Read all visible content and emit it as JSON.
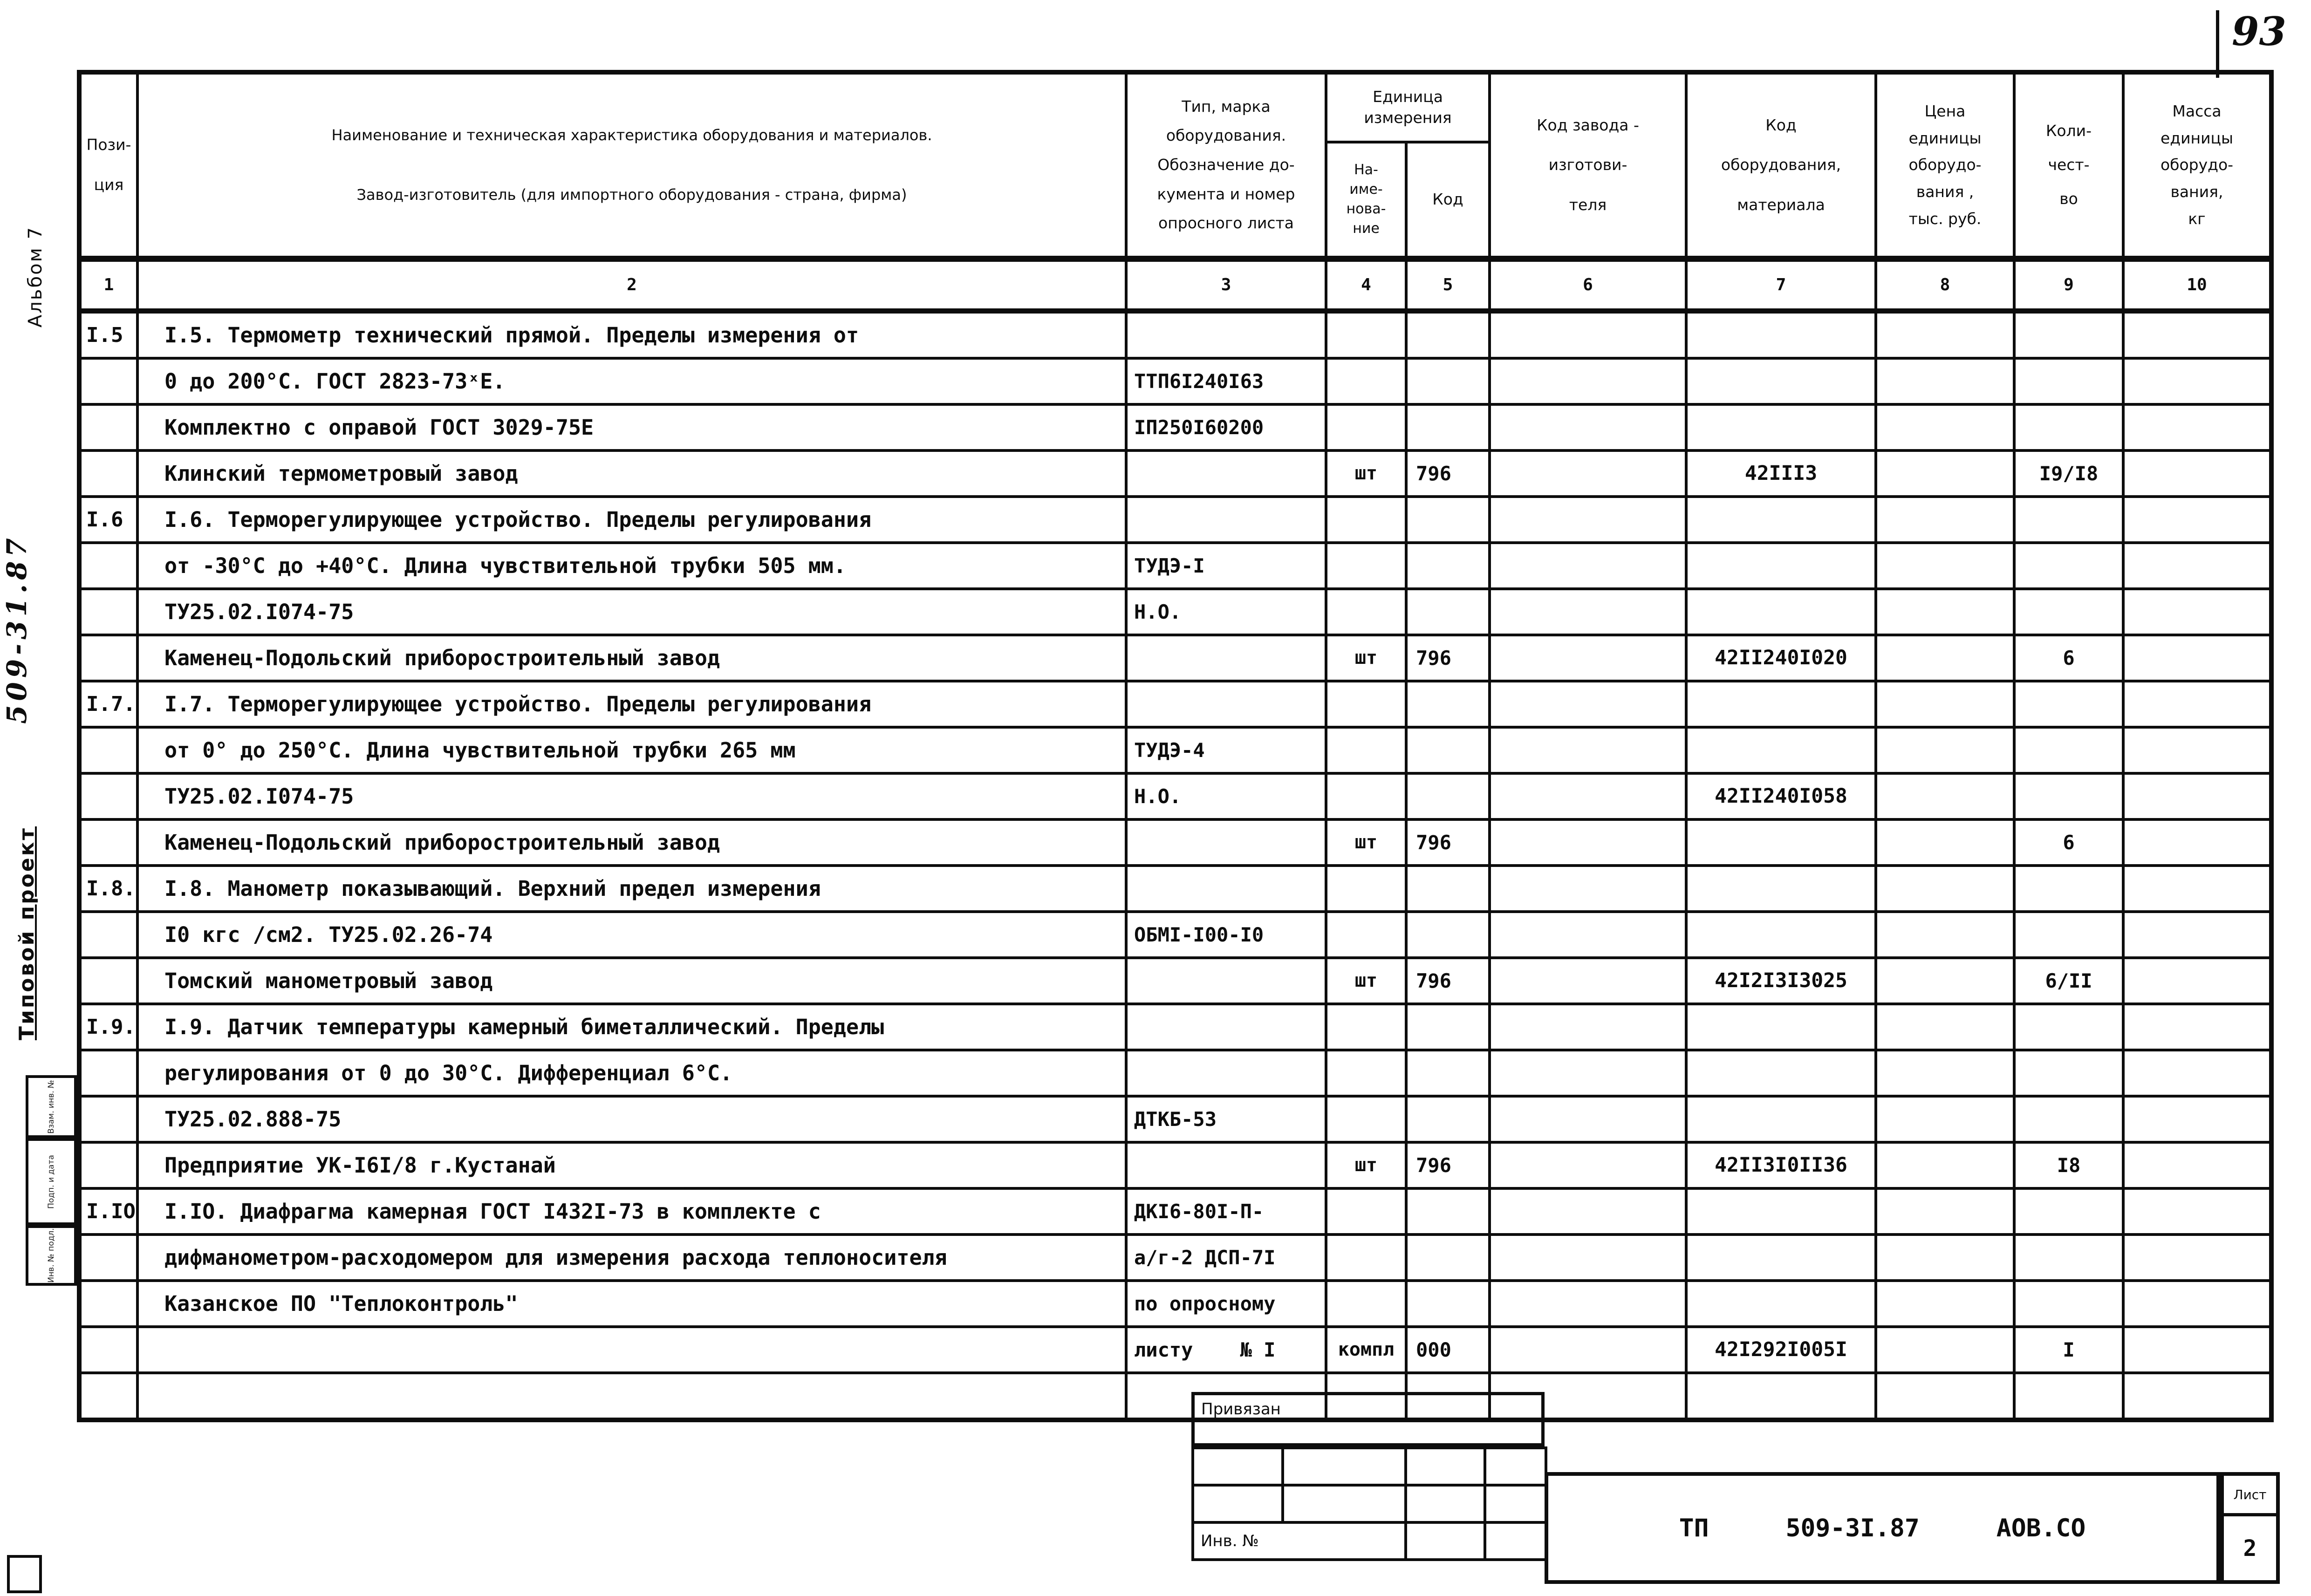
{
  "page": {
    "number_note": "93"
  },
  "margin": {
    "album": "Альбом 7",
    "project_code": "509-31.87",
    "project_type": "Типовой проект",
    "stamp_labels": [
      "Взам. инв. №",
      "Подп. и дата",
      "Инв. № подл."
    ]
  },
  "table": {
    "header": {
      "c1": "Пози-\nция",
      "c2": "Наименование и техническая характеристика  оборудования и материалов.\n\nЗавод-изготовитель  (для импортного оборудования -  страна, фирма)",
      "c3": "Тип,    марка\nоборудования.\nОбозначение  до-\nкумента и  номер\nопросного листа",
      "unit": "Единица\nизмерения",
      "c4": "На-\nиме-\nнова-\nние",
      "c5": "Код",
      "c6": "Код  завода -\nизготови-\nтеля",
      "c7": "Код\nоборудования,\nматериала",
      "c8": "Цена\nединицы\nоборудо-\nвания ,\nтыс. руб.",
      "c9": "Коли-\nчест-\nво",
      "c10": "Масса\nединицы\nоборудо-\nвания,\nкг",
      "numbers": [
        "1",
        "2",
        "3",
        "4",
        "5",
        "6",
        "7",
        "8",
        "9",
        "10"
      ]
    },
    "rows": [
      [
        "I.5",
        "I.5. Термометр технический прямой. Пределы измерения от",
        "",
        "",
        "",
        "",
        "",
        "",
        "",
        ""
      ],
      [
        "",
        "0 до 200°С. ГОСТ 2823-73ˣЕ.",
        "ТТП6I240I63",
        "",
        "",
        "",
        "",
        "",
        "",
        ""
      ],
      [
        "",
        "Комплектно с оправой ГОСТ 3029-75Е",
        "IП250I60200",
        "",
        "",
        "",
        "",
        "",
        "",
        ""
      ],
      [
        "",
        "Клинский термометровый завод",
        "",
        "шт",
        "796",
        "",
        "42III3",
        "",
        "I9/I8",
        ""
      ],
      [
        "I.6",
        "I.6. Терморегулирующее устройство. Пределы регулирования",
        "",
        "",
        "",
        "",
        "",
        "",
        "",
        ""
      ],
      [
        "",
        "от -30°С до +40°С. Длина чувствительной трубки 505 мм.",
        "ТУДЭ-I",
        "",
        "",
        "",
        "",
        "",
        "",
        ""
      ],
      [
        "",
        "ТУ25.02.I074-75",
        "Н.О.",
        "",
        "",
        "",
        "",
        "",
        "",
        ""
      ],
      [
        "",
        "Каменец-Подольский приборостроительный завод",
        "",
        "шт",
        "796",
        "",
        "42II240I020",
        "",
        "6",
        ""
      ],
      [
        "I.7.",
        "I.7. Терморегулирующее устройство. Пределы регулирования",
        "",
        "",
        "",
        "",
        "",
        "",
        "",
        ""
      ],
      [
        "",
        "от 0° до 250°С. Длина чувствительной трубки 265 мм",
        "ТУДЭ-4",
        "",
        "",
        "",
        "",
        "",
        "",
        ""
      ],
      [
        "",
        "ТУ25.02.I074-75",
        "Н.О.",
        "",
        "",
        "",
        "42II240I058",
        "",
        "",
        ""
      ],
      [
        "",
        "Каменец-Подольский приборостроительный завод",
        "",
        "шт",
        "796",
        "",
        "",
        "",
        "6",
        ""
      ],
      [
        "I.8.",
        "I.8. Манометр показывающий. Верхний предел измерения",
        "",
        "",
        "",
        "",
        "",
        "",
        "",
        ""
      ],
      [
        "",
        "I0 кгс /см2. ТУ25.02.26-74",
        "ОБМI-I00-I0",
        "",
        "",
        "",
        "",
        "",
        "",
        ""
      ],
      [
        "",
        "Томский манометровый завод",
        "",
        "шт",
        "796",
        "",
        "42I2I3I3025",
        "",
        "6/II",
        ""
      ],
      [
        "I.9.",
        "I.9. Датчик температуры камерный биметаллический. Пределы",
        "",
        "",
        "",
        "",
        "",
        "",
        "",
        ""
      ],
      [
        "",
        "регулирования от 0 до 30°С. Дифференциал 6°С.",
        "",
        "",
        "",
        "",
        "",
        "",
        "",
        ""
      ],
      [
        "",
        "ТУ25.02.888-75",
        "ДТКБ-53",
        "",
        "",
        "",
        "",
        "",
        "",
        ""
      ],
      [
        "",
        "Предприятие УК-I6I/8 г.Кустанай",
        "",
        "шт",
        "796",
        "",
        "42II3I0II36",
        "",
        "I8",
        ""
      ],
      [
        "I.IO",
        "I.IO. Диафрагма камерная ГОСТ I432I-73 в комплекте с",
        "ДКI6-80I-П-",
        "",
        "",
        "",
        "",
        "",
        "",
        ""
      ],
      [
        "",
        "дифманометром-расходомером для измерения расхода теплоносителя",
        "а/г-2 ДСП-7I",
        "",
        "",
        "",
        "",
        "",
        "",
        ""
      ],
      [
        "",
        "Казанское ПО \"Теплоконтроль\"",
        "по опросному",
        "",
        "",
        "",
        "",
        "",
        "",
        ""
      ],
      [
        "",
        "",
        "листу    № I",
        "компл",
        "000",
        "",
        "42I292I005I",
        "",
        "I",
        ""
      ],
      [
        "",
        "",
        "",
        "",
        "",
        "",
        "",
        "",
        "",
        ""
      ]
    ]
  },
  "stamp": {
    "privyazan": "Привязан",
    "inv_no": "Инв. №",
    "title_tp": "ТП",
    "title_code": "509-3I.87",
    "title_org": "АОВ.СО",
    "sheet_label": "Лист",
    "sheet_number": "2"
  }
}
